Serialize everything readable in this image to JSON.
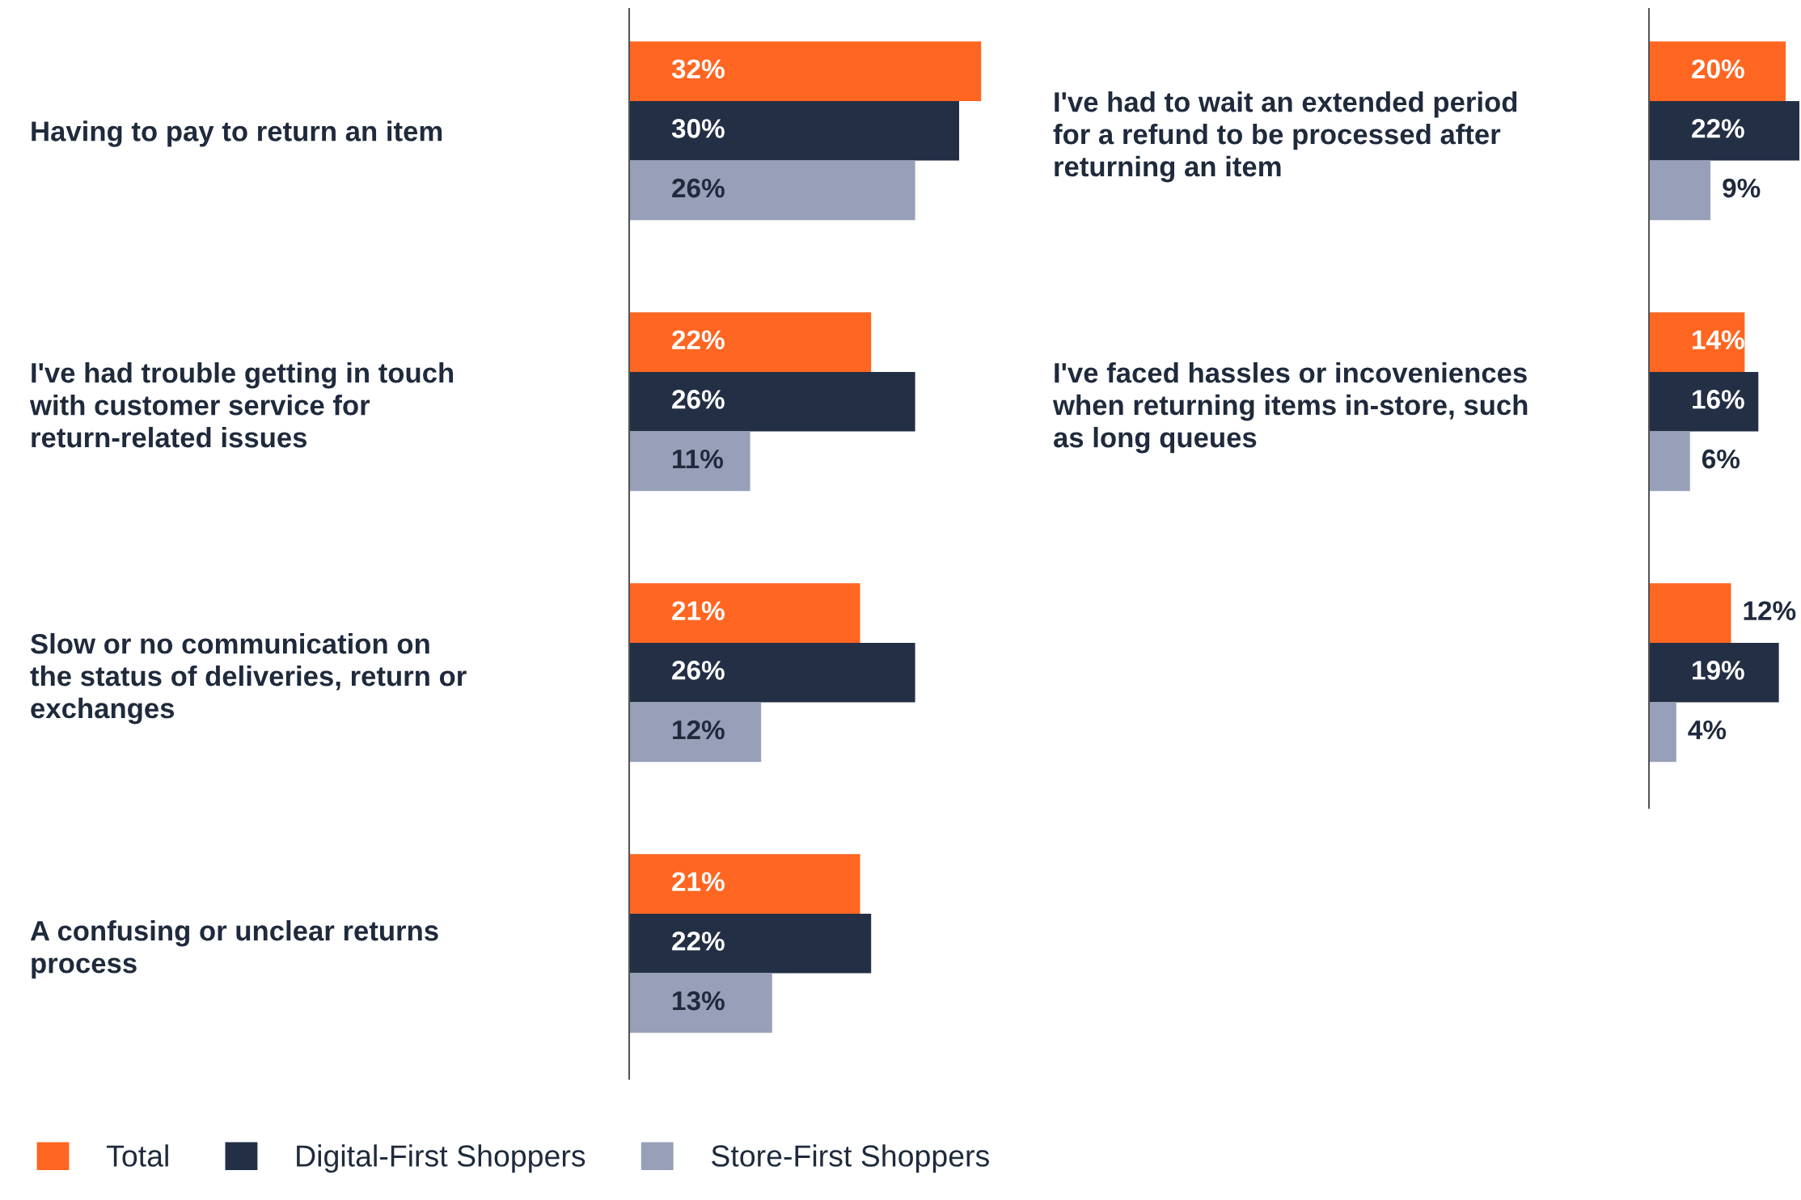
{
  "chart_data": [
    {
      "type": "bar",
      "orientation": "horizontal",
      "legend": "bottom",
      "tick_labels": "y",
      "categories": [
        "Having to pay to return an item",
        "I've had trouble getting in touch\nwith customer service for\nreturn-related issues",
        "Slow or no communication on\nthe status of deliveries, return or\nexchanges",
        "A confusing or unclear returns\nprocess"
      ],
      "series": [
        {
          "name": "Total",
          "color": "#ff6622",
          "values": [
            32,
            22,
            21,
            21
          ],
          "value_labels": [
            "32%",
            "22%",
            "21%",
            "21%"
          ]
        },
        {
          "name": "Digital-First Shoppers",
          "color": "#232f45",
          "values": [
            30,
            26,
            26,
            22
          ],
          "value_labels": [
            "30%",
            "26%",
            "26%",
            "22%"
          ]
        },
        {
          "name": "Store-First Shoppers",
          "color": "#97a0b8",
          "values": [
            26,
            11,
            12,
            13
          ],
          "value_labels": [
            "26%",
            "11%",
            "12%",
            "13%"
          ]
        }
      ]
    },
    {
      "type": "bar",
      "orientation": "horizontal",
      "tick_labels": "y",
      "categories": [
        "I've had to wait an extended period\nfor a refund to be processed after\nreturning an item",
        "I've faced hassles or incoveniences\nwhen returning items in-store, such\nas long queues",
        null
      ],
      "series": [
        {
          "color": "#ff6622",
          "values": [
            20,
            14,
            12
          ],
          "value_labels": [
            "20%",
            "14%",
            "12%"
          ]
        },
        {
          "color": "#232f45",
          "values": [
            22,
            16,
            19
          ],
          "value_labels": [
            "22%",
            "16%",
            "19%"
          ]
        },
        {
          "color": "#97a0b8",
          "values": [
            9,
            6,
            4
          ],
          "value_labels": [
            "9%",
            "6%",
            "4%"
          ]
        }
      ]
    }
  ]
}
